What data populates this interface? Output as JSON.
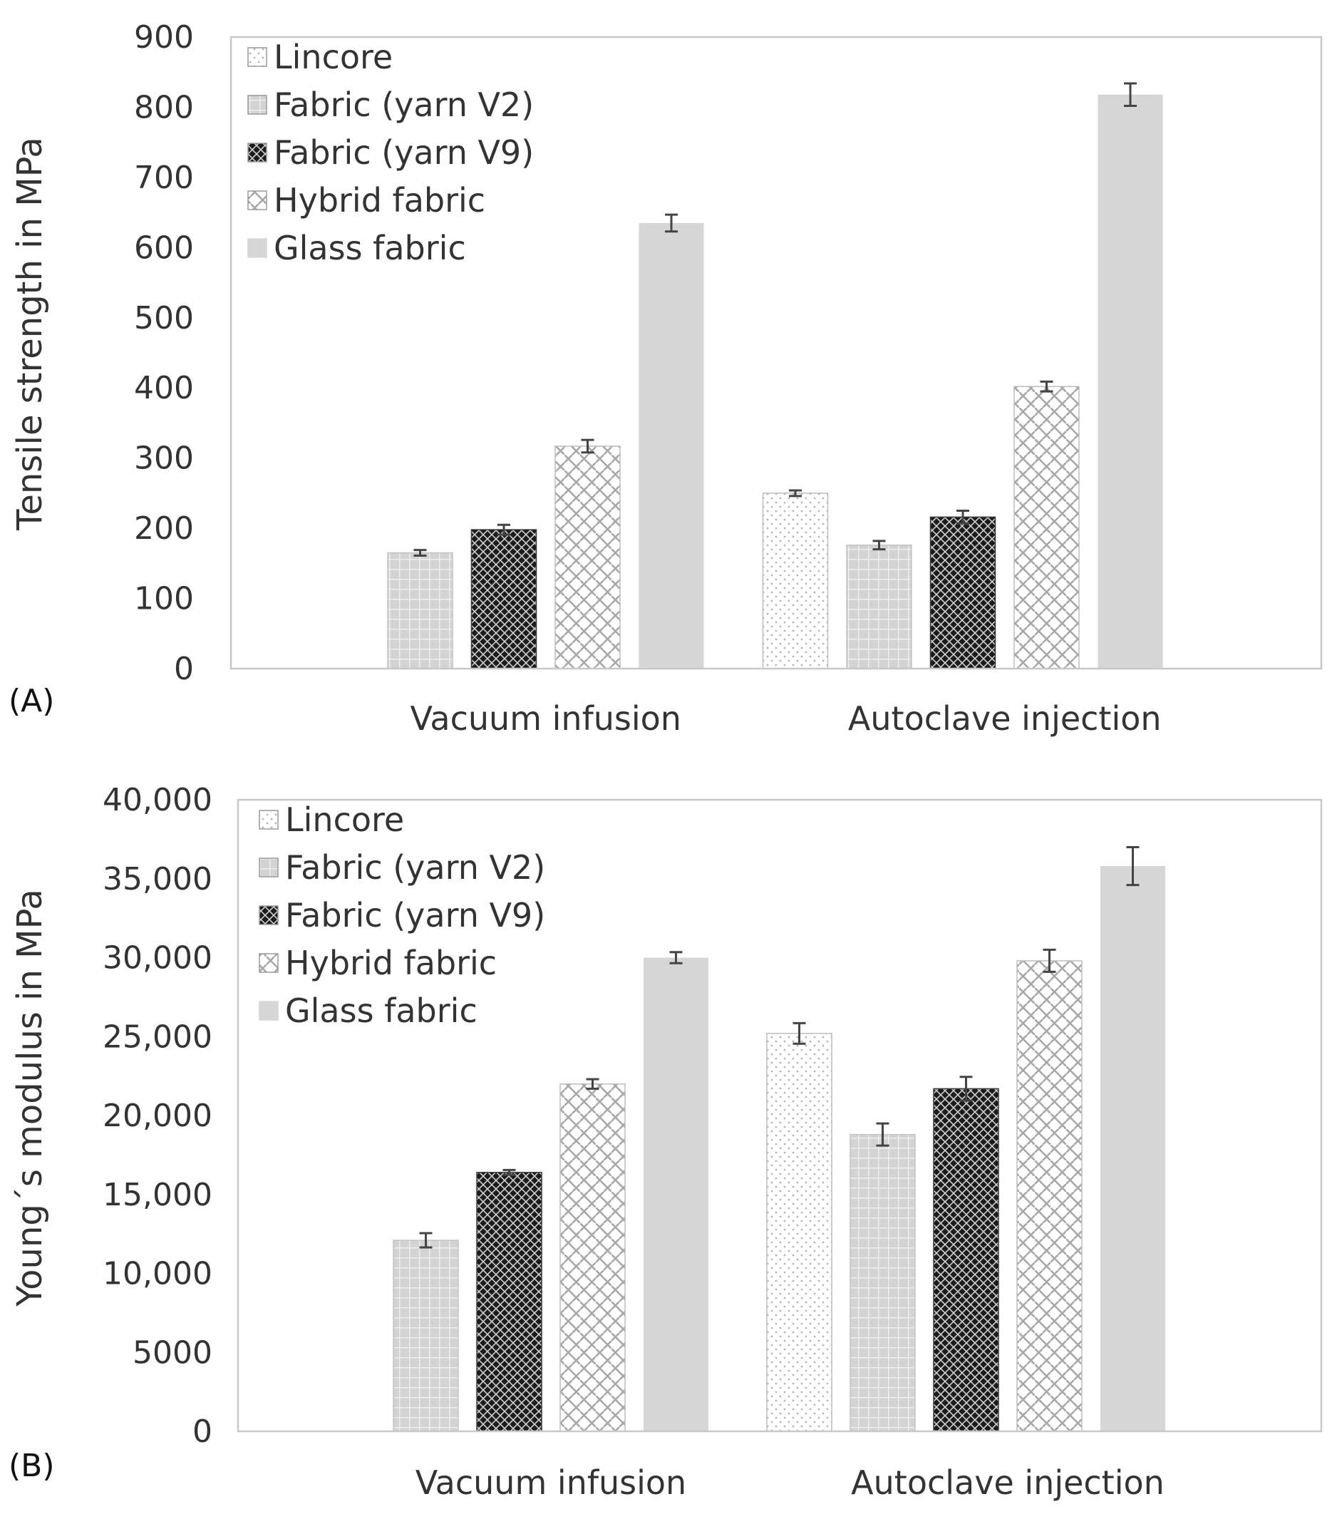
{
  "chart_data": [
    {
      "type": "bar",
      "panel_label": "(A)",
      "title": "",
      "xlabel": "",
      "ylabel": "Tensile strength in MPa",
      "ylim": [
        0,
        900
      ],
      "yticks": [
        0,
        100,
        200,
        300,
        400,
        500,
        600,
        700,
        800,
        900
      ],
      "ytick_labels": [
        "0",
        "100",
        "200",
        "300",
        "400",
        "500",
        "600",
        "700",
        "800",
        "900"
      ],
      "grid": false,
      "legend_position": "top-left",
      "categories": [
        "Vacuum infusion",
        "Autoclave injection"
      ],
      "series": [
        {
          "name": "Lincore",
          "pattern": "dots",
          "values": [
            null,
            250
          ],
          "errors": [
            null,
            4
          ]
        },
        {
          "name": "Fabric (yarn V2)",
          "pattern": "grid",
          "values": [
            165,
            176
          ],
          "errors": [
            4,
            6
          ]
        },
        {
          "name": "Fabric (yarn V9)",
          "pattern": "dark-check",
          "values": [
            198,
            216
          ],
          "errors": [
            7,
            9
          ]
        },
        {
          "name": "Hybrid fabric",
          "pattern": "weave",
          "values": [
            317,
            402
          ],
          "errors": [
            9,
            7
          ]
        },
        {
          "name": "Glass fabric",
          "pattern": "solid",
          "values": [
            635,
            818
          ],
          "errors": [
            12,
            16
          ]
        }
      ]
    },
    {
      "type": "bar",
      "panel_label": "(B)",
      "title": "",
      "xlabel": "",
      "ylabel": "Young´s modulus in MPa",
      "ylim": [
        0,
        40000
      ],
      "yticks": [
        0,
        5000,
        10000,
        15000,
        20000,
        25000,
        30000,
        35000,
        40000
      ],
      "ytick_labels": [
        "0",
        "5000",
        "10,000",
        "15,000",
        "20,000",
        "25,000",
        "30,000",
        "35,000",
        "40,000"
      ],
      "grid": false,
      "legend_position": "top-left",
      "categories": [
        "Vacuum infusion",
        "Autoclave injection"
      ],
      "series": [
        {
          "name": "Lincore",
          "pattern": "dots",
          "values": [
            null,
            25200
          ],
          "errors": [
            null,
            650
          ]
        },
        {
          "name": "Fabric (yarn V2)",
          "pattern": "grid",
          "values": [
            12100,
            18800
          ],
          "errors": [
            450,
            700
          ]
        },
        {
          "name": "Fabric (yarn V9)",
          "pattern": "dark-check",
          "values": [
            16400,
            21700
          ],
          "errors": [
            150,
            750
          ]
        },
        {
          "name": "Hybrid fabric",
          "pattern": "weave",
          "values": [
            22000,
            29800
          ],
          "errors": [
            300,
            700
          ]
        },
        {
          "name": "Glass fabric",
          "pattern": "solid",
          "values": [
            30000,
            35800
          ],
          "errors": [
            350,
            1200
          ]
        }
      ]
    }
  ],
  "colors": {
    "axis": "#c8c8c8",
    "text": "#333333",
    "error_bar": "#444444",
    "lincore_fill": "#ffffff",
    "lincore_dot": "#b4b4b4",
    "v2_fill": "#d3d3d3",
    "v2_line": "#eeeeee",
    "v9_fill": "#1c1c1c",
    "v9_line": "#cfcfcf",
    "hybrid_fill": "#ffffff",
    "hybrid_line": "#a8a8a8",
    "glass_fill": "#d6d6d6"
  }
}
